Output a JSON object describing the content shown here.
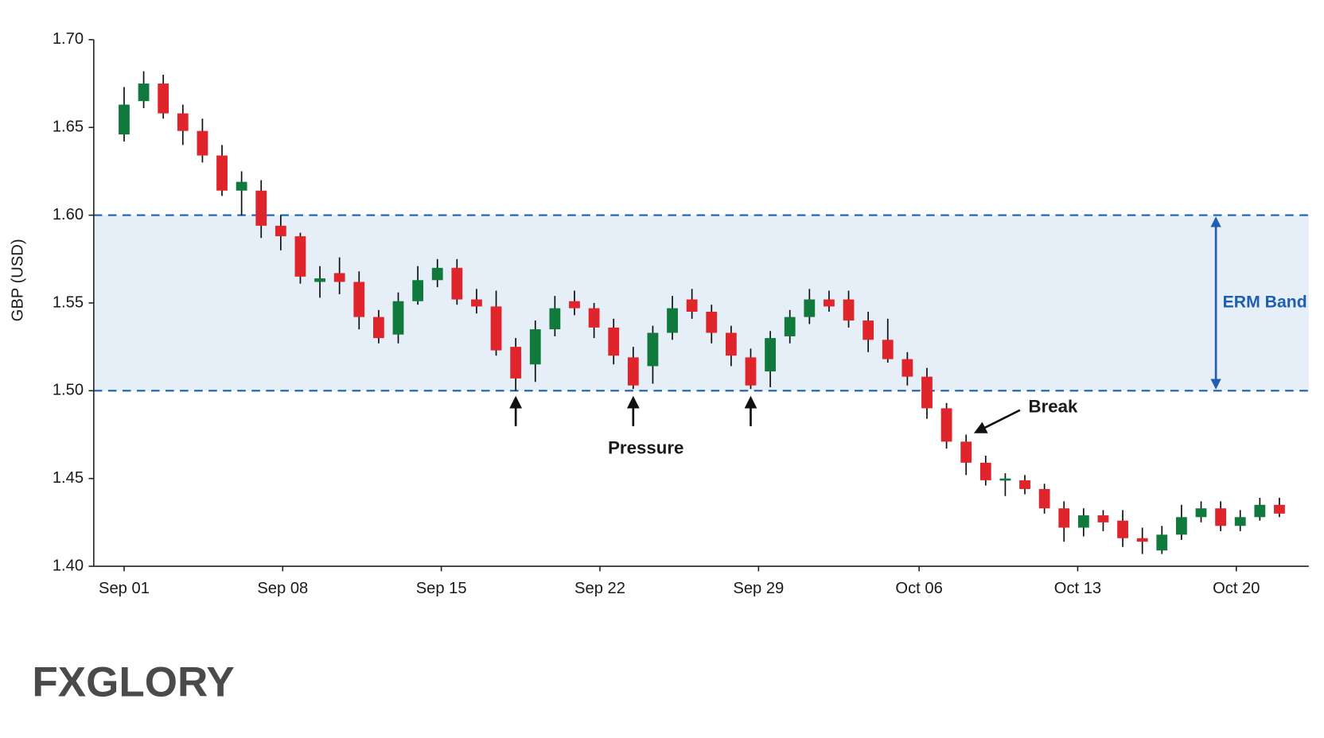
{
  "chart_data": {
    "type": "candlestick",
    "ylabel": "GBP (USD)",
    "x": [
      0,
      1,
      2,
      3,
      4,
      5,
      6,
      7,
      8,
      9,
      10,
      11,
      12,
      13,
      14,
      15,
      16,
      17,
      18,
      19,
      20,
      21,
      22,
      23,
      24,
      25,
      26,
      27,
      28,
      29,
      30,
      31,
      32,
      33,
      34,
      35,
      36,
      37,
      38,
      39,
      40,
      41,
      42,
      43,
      44,
      45,
      46,
      47,
      48,
      49,
      50,
      51,
      52,
      53,
      54,
      55,
      56,
      57,
      58,
      59
    ],
    "open": [
      1.646,
      1.665,
      1.675,
      1.658,
      1.648,
      1.634,
      1.614,
      1.614,
      1.594,
      1.588,
      1.562,
      1.567,
      1.562,
      1.542,
      1.532,
      1.551,
      1.563,
      1.57,
      1.552,
      1.548,
      1.525,
      1.515,
      1.535,
      1.551,
      1.547,
      1.536,
      1.519,
      1.514,
      1.533,
      1.552,
      1.545,
      1.533,
      1.519,
      1.511,
      1.531,
      1.542,
      1.552,
      1.552,
      1.54,
      1.529,
      1.518,
      1.508,
      1.49,
      1.471,
      1.459,
      1.449,
      1.449,
      1.444,
      1.433,
      1.422,
      1.429,
      1.426,
      1.416,
      1.409,
      1.418,
      1.428,
      1.433,
      1.423,
      1.428,
      1.435
    ],
    "high": [
      1.673,
      1.682,
      1.68,
      1.663,
      1.655,
      1.64,
      1.625,
      1.62,
      1.6,
      1.59,
      1.571,
      1.576,
      1.568,
      1.546,
      1.556,
      1.571,
      1.575,
      1.575,
      1.558,
      1.557,
      1.53,
      1.54,
      1.554,
      1.557,
      1.55,
      1.541,
      1.525,
      1.537,
      1.554,
      1.558,
      1.549,
      1.537,
      1.524,
      1.534,
      1.546,
      1.558,
      1.557,
      1.557,
      1.545,
      1.541,
      1.522,
      1.513,
      1.493,
      1.475,
      1.463,
      1.453,
      1.452,
      1.447,
      1.437,
      1.433,
      1.432,
      1.432,
      1.422,
      1.423,
      1.435,
      1.437,
      1.437,
      1.432,
      1.439,
      1.439
    ],
    "low": [
      1.642,
      1.661,
      1.655,
      1.64,
      1.63,
      1.611,
      1.6,
      1.587,
      1.58,
      1.561,
      1.553,
      1.555,
      1.535,
      1.527,
      1.527,
      1.549,
      1.559,
      1.549,
      1.544,
      1.52,
      1.5,
      1.505,
      1.531,
      1.543,
      1.53,
      1.515,
      1.501,
      1.504,
      1.529,
      1.541,
      1.527,
      1.514,
      1.501,
      1.502,
      1.527,
      1.538,
      1.545,
      1.536,
      1.522,
      1.516,
      1.503,
      1.484,
      1.467,
      1.452,
      1.446,
      1.44,
      1.441,
      1.43,
      1.414,
      1.417,
      1.42,
      1.411,
      1.407,
      1.407,
      1.415,
      1.425,
      1.42,
      1.42,
      1.426,
      1.428
    ],
    "close": [
      1.663,
      1.675,
      1.658,
      1.648,
      1.634,
      1.614,
      1.619,
      1.594,
      1.588,
      1.565,
      1.564,
      1.562,
      1.542,
      1.53,
      1.551,
      1.563,
      1.57,
      1.552,
      1.548,
      1.523,
      1.507,
      1.535,
      1.547,
      1.547,
      1.536,
      1.52,
      1.503,
      1.533,
      1.547,
      1.545,
      1.533,
      1.52,
      1.503,
      1.53,
      1.542,
      1.552,
      1.548,
      1.54,
      1.529,
      1.518,
      1.508,
      1.49,
      1.471,
      1.459,
      1.449,
      1.45,
      1.444,
      1.433,
      1.422,
      1.429,
      1.425,
      1.416,
      1.414,
      1.418,
      1.428,
      1.433,
      1.423,
      1.428,
      1.435,
      1.43
    ],
    "up_color": "#0f7a3c",
    "down_color": "#e0242b",
    "xlim": [
      -1.55,
      60.5
    ],
    "xticks": [
      {
        "value": 0,
        "label": "Sep 01"
      },
      {
        "value": 8.1,
        "label": "Sep 08"
      },
      {
        "value": 16.2,
        "label": "Sep 15"
      },
      {
        "value": 24.3,
        "label": "Sep 22"
      },
      {
        "value": 32.4,
        "label": "Sep 29"
      },
      {
        "value": 40.6,
        "label": "Oct 06"
      },
      {
        "value": 48.7,
        "label": "Oct 13"
      },
      {
        "value": 56.8,
        "label": "Oct 20"
      }
    ],
    "ylim": [
      1.4,
      1.7
    ],
    "yticks": [
      {
        "value": 1.4,
        "label": "1.40"
      },
      {
        "value": 1.45,
        "label": "1.45"
      },
      {
        "value": 1.5,
        "label": "1.50"
      },
      {
        "value": 1.55,
        "label": "1.55"
      },
      {
        "value": 1.6,
        "label": "1.60"
      },
      {
        "value": 1.65,
        "label": "1.65"
      },
      {
        "value": 1.7,
        "label": "1.70"
      }
    ],
    "band": {
      "range": [
        1.5,
        1.6
      ],
      "label": "ERM Band",
      "color": "#1f5fb0",
      "fill": "#e6eef8"
    },
    "annotations": {
      "pressure": "Pressure",
      "break": "Break"
    },
    "brand": "FXGLORY"
  }
}
